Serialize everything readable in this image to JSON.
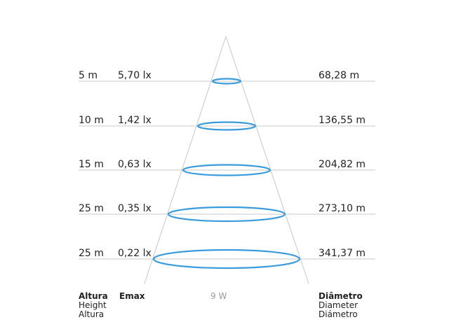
{
  "rows": [
    {
      "height": "5 m",
      "emax": "5,70 lx",
      "diameter": "68,28 m"
    },
    {
      "height": "10 m",
      "emax": "1,42 lx",
      "diameter": "136,55 m"
    },
    {
      "height": "15 m",
      "emax": "0,63 lx",
      "diameter": "204,82 m"
    },
    {
      "height": "25 m",
      "emax": "0,35 lx",
      "diameter": "273,10 m"
    },
    {
      "height": "25 m",
      "emax": "0,22 lx",
      "diameter": "341,37 m"
    }
  ],
  "legend": {
    "height_pt": "Altura",
    "height_en": "Height",
    "height_es": "Altura",
    "emax": "Emax",
    "power": "9 W",
    "diameter_pt": "Diâmetro",
    "diameter_en": "Diameter",
    "diameter_es": "Diámetro"
  },
  "colors": {
    "beam_ellipse": "#3a9bdc",
    "cone_lines": "#c8c8c8",
    "text": "#222222",
    "muted_text": "#999999"
  }
}
